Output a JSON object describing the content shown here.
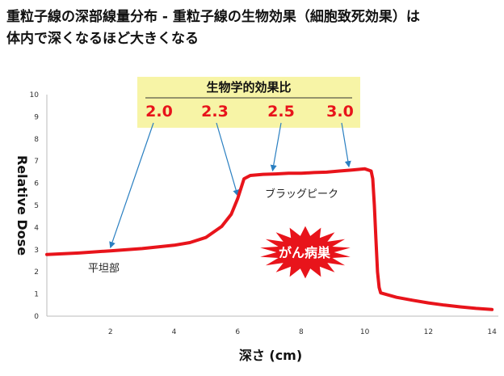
{
  "title_line1": "重粒子線の深部線量分布 - 重粒子線の生物効果（細胞致死効果）は",
  "title_line2": "体内で深くなるほど大きくなる",
  "colors": {
    "curve": "#e8141b",
    "arrow": "#2a7fc1",
    "rbe_box": "#f7f4a6",
    "burst": "#e8141b"
  },
  "chart_data": {
    "type": "line",
    "xlabel": "深さ (cm)",
    "ylabel": "Relative Dose",
    "xlim": [
      0,
      14.2
    ],
    "ylim": [
      0,
      10
    ],
    "x_ticks": [
      2,
      4,
      6,
      8,
      10,
      12,
      14
    ],
    "y_ticks": [
      0,
      1,
      2,
      3,
      4,
      5,
      6,
      7,
      8,
      9,
      10
    ],
    "grid": false,
    "series": [
      {
        "x": [
          0,
          1,
          2,
          3,
          4,
          4.5,
          5,
          5.5,
          5.8,
          6.0,
          6.2,
          6.4,
          6.8,
          7.2,
          7.6,
          8.0,
          8.4,
          8.8,
          9.2,
          9.6,
          10.0,
          10.2,
          10.25,
          10.3,
          10.35,
          10.4,
          10.45,
          10.5,
          11,
          11.5,
          12,
          12.5,
          13,
          13.5,
          14
        ],
        "y": [
          2.78,
          2.85,
          2.95,
          3.05,
          3.2,
          3.32,
          3.55,
          4.05,
          4.6,
          5.3,
          6.2,
          6.35,
          6.4,
          6.42,
          6.45,
          6.45,
          6.48,
          6.5,
          6.55,
          6.6,
          6.65,
          6.55,
          6.2,
          5.0,
          3.5,
          2.0,
          1.3,
          1.05,
          0.85,
          0.72,
          0.6,
          0.5,
          0.42,
          0.35,
          0.3
        ]
      }
    ],
    "annotations": {
      "plateau_label": "平坦部",
      "peak_label": "ブラッグピーク",
      "cancer_label": "がん病巣",
      "rbe_title": "生物学的効果比",
      "rbe": [
        {
          "value": "2.0",
          "target": [
            2.0,
            2.95
          ]
        },
        {
          "value": "2.3",
          "target": [
            6.0,
            5.3
          ]
        },
        {
          "value": "2.5",
          "target": [
            7.1,
            6.42
          ]
        },
        {
          "value": "3.0",
          "target": [
            9.5,
            6.6
          ]
        }
      ]
    }
  }
}
